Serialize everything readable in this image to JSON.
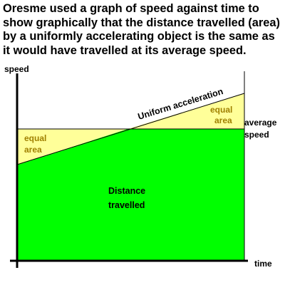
{
  "caption": "Oresme used a graph of speed against time to show graphically that the distance travelled (area) by a uniformly accelerating object is the same as it would have travelled at its average speed.",
  "axes": {
    "y_label": "speed",
    "x_label": "time"
  },
  "labels": {
    "slope": "Uniform acceleration",
    "equal_area": [
      "equal",
      "area"
    ],
    "average_speed": [
      "average",
      "speed"
    ],
    "distance": [
      "Distance",
      "travelled"
    ]
  },
  "colors": {
    "distance_fill": "#00ff00",
    "triangle_fill": "#ffff99",
    "area_label": "#a08000",
    "axis": "#000000"
  }
}
